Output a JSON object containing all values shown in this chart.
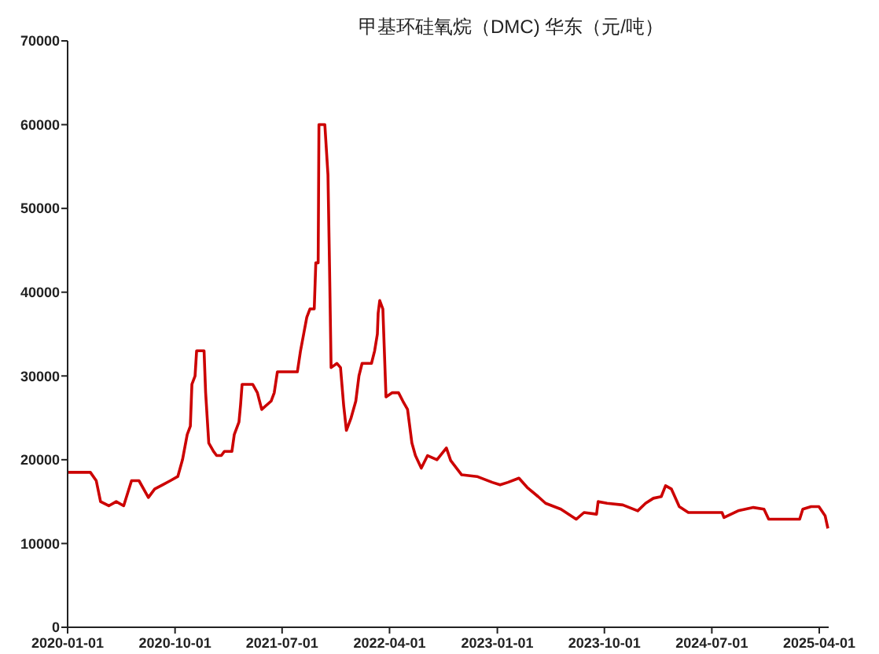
{
  "chart_data": {
    "type": "line",
    "title": "甲基环硅氧烷（DMC) 华东（元/吨）",
    "x": [
      "2020-01-01",
      "2020-02-28",
      "2020-03-14",
      "2020-03-25",
      "2020-04-15",
      "2020-05-04",
      "2020-05-23",
      "2020-06-12",
      "2020-07-01",
      "2020-07-25",
      "2020-08-10",
      "2020-08-30",
      "2020-09-19",
      "2020-10-08",
      "2020-10-20",
      "2020-11-01",
      "2020-11-09",
      "2020-11-13",
      "2020-11-21",
      "2020-11-25",
      "2020-12-14",
      "2020-12-18",
      "2020-12-26",
      "2021-01-07",
      "2021-01-15",
      "2021-01-27",
      "2021-02-04",
      "2021-02-23",
      "2021-03-01",
      "2021-03-13",
      "2021-03-17",
      "2021-03-21",
      "2021-04-17",
      "2021-04-29",
      "2021-05-10",
      "2021-06-03",
      "2021-06-11",
      "2021-06-19",
      "2021-08-09",
      "2021-08-17",
      "2021-08-25",
      "2021-09-02",
      "2021-09-10",
      "2021-09-21",
      "2021-09-25",
      "2021-10-01",
      "2021-10-03",
      "2021-10-18",
      "2021-10-26",
      "2021-10-30",
      "2021-11-03",
      "2021-11-18",
      "2021-11-27",
      "2021-12-05",
      "2021-12-12",
      "2021-12-24",
      "2022-01-05",
      "2022-01-13",
      "2022-01-21",
      "2022-02-14",
      "2022-02-22",
      "2022-03-01",
      "2022-03-03",
      "2022-03-07",
      "2022-03-15",
      "2022-03-23",
      "2022-04-08",
      "2022-04-24",
      "2022-05-05",
      "2022-05-17",
      "2022-05-28",
      "2022-06-06",
      "2022-06-21",
      "2022-07-07",
      "2022-07-31",
      "2022-08-24",
      "2022-09-04",
      "2022-10-02",
      "2022-11-10",
      "2022-12-19",
      "2023-01-08",
      "2023-01-28",
      "2023-02-25",
      "2023-03-18",
      "2023-04-15",
      "2023-05-04",
      "2023-06-12",
      "2023-07-21",
      "2023-08-10",
      "2023-09-11",
      "2023-09-15",
      "2023-10-08",
      "2023-11-17",
      "2023-12-25",
      "2024-01-14",
      "2024-02-03",
      "2024-02-23",
      "2024-03-05",
      "2024-03-20",
      "2024-04-09",
      "2024-05-02",
      "2024-07-27",
      "2024-08-01",
      "2024-09-06",
      "2024-10-15",
      "2024-11-11",
      "2024-11-23",
      "2025-02-10",
      "2025-02-18",
      "2025-03-11",
      "2025-03-31",
      "2025-04-16",
      "2025-04-23"
    ],
    "series": [
      {
        "color": "#cc0000",
        "values": [
          18500,
          18500,
          17500,
          15000,
          14500,
          15000,
          14500,
          17500,
          17500,
          15500,
          16500,
          17000,
          17500,
          18000,
          20000,
          23000,
          24000,
          29000,
          30000,
          33000,
          33000,
          28000,
          22000,
          21000,
          20500,
          20500,
          21000,
          21000,
          23000,
          24500,
          26500,
          29000,
          29000,
          28000,
          26000,
          27000,
          28000,
          30500,
          30500,
          33000,
          35000,
          37000,
          38000,
          38000,
          43500,
          43500,
          60000,
          60000,
          54000,
          43000,
          31000,
          31500,
          31000,
          26500,
          23500,
          25000,
          27000,
          30000,
          31500,
          31500,
          33000,
          35000,
          37500,
          39000,
          38000,
          27500,
          28000,
          28000,
          27000,
          26000,
          22000,
          20500,
          19000,
          20500,
          20000,
          21400,
          19900,
          18200,
          18000,
          17300,
          17000,
          17300,
          17800,
          16700,
          15600,
          14800,
          14100,
          12900,
          13700,
          13500,
          15000,
          14800,
          14600,
          13900,
          14800,
          15400,
          15600,
          16900,
          16500,
          14400,
          13700,
          13700,
          13100,
          13900,
          14300,
          14100,
          12900,
          12900,
          14100,
          14400,
          14400,
          13300,
          11800
        ]
      }
    ],
    "xlim": [
      "2020-01-01",
      "2025-04-25"
    ],
    "xticks": [
      "2020-01-01",
      "2020-10-01",
      "2021-07-01",
      "2022-04-01",
      "2023-01-01",
      "2023-10-01",
      "2024-07-01",
      "2025-04-01"
    ],
    "ylim": [
      0,
      70000
    ],
    "yticks": [
      0,
      10000,
      20000,
      30000,
      40000,
      50000,
      60000,
      70000
    ],
    "grid": false,
    "line_style": "solid"
  }
}
